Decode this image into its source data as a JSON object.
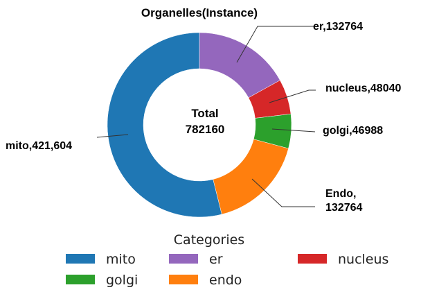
{
  "chart_data": {
    "type": "pie",
    "donut": true,
    "title": "Organelles(Instance)",
    "center": {
      "label": "Total",
      "value": "782160"
    },
    "slices": [
      {
        "name": "er",
        "value": 132764,
        "color": "#9467bd",
        "callout": [
          "er,132764"
        ]
      },
      {
        "name": "nucleus",
        "value": 48040,
        "color": "#d62728",
        "callout": [
          "nucleus,48040"
        ]
      },
      {
        "name": "golgi",
        "value": 46988,
        "color": "#2ca02c",
        "callout": [
          "golgi,46988"
        ]
      },
      {
        "name": "endo",
        "value": 132764,
        "color": "#ff7f0e",
        "callout": [
          "Endo,",
          "132764"
        ]
      },
      {
        "name": "mito",
        "value": 421604,
        "color": "#1f77b4",
        "callout": [
          "mito,421,604"
        ]
      }
    ],
    "legend": {
      "title": "Categories",
      "placement": "bottom",
      "items": [
        {
          "label": "mito",
          "color": "#1f77b4"
        },
        {
          "label": "golgi",
          "color": "#2ca02c"
        },
        {
          "label": "er",
          "color": "#9467bd"
        },
        {
          "label": "endo",
          "color": "#ff7f0e"
        },
        {
          "label": "nucleus",
          "color": "#d62728"
        }
      ]
    }
  }
}
